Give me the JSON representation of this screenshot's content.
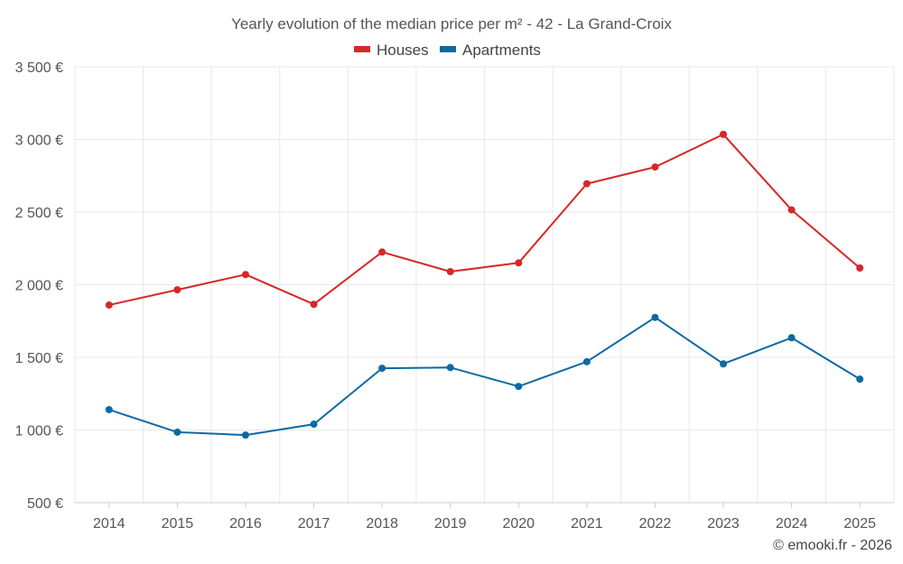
{
  "chart_data": {
    "type": "line",
    "title": "Yearly evolution of the median price per m² - 42 - La Grand-Croix",
    "categories": [
      "2014",
      "2015",
      "2016",
      "2017",
      "2018",
      "2019",
      "2020",
      "2021",
      "2022",
      "2023",
      "2024",
      "2025"
    ],
    "series": [
      {
        "name": "Houses",
        "color": "#d62728",
        "values": [
          1860,
          1965,
          2070,
          1865,
          2225,
          2090,
          2150,
          2695,
          2810,
          3035,
          2515,
          2115
        ]
      },
      {
        "name": "Apartments",
        "color": "#0b6aa2",
        "values": [
          1140,
          985,
          965,
          1040,
          1425,
          1430,
          1300,
          1470,
          1775,
          1455,
          1635,
          1350
        ]
      }
    ],
    "y_ticks": [
      500,
      1000,
      1500,
      2000,
      2500,
      3000,
      3500
    ],
    "y_tick_labels": [
      "500 €",
      "1 000 €",
      "1 500 €",
      "2 000 €",
      "2 500 €",
      "3 000 €",
      "3 500 €"
    ],
    "ylim": [
      500,
      3500
    ],
    "xlabel": "",
    "ylabel": "",
    "grid": true,
    "legend_position": "top-center"
  },
  "credit": "© emooki.fr - 2026"
}
